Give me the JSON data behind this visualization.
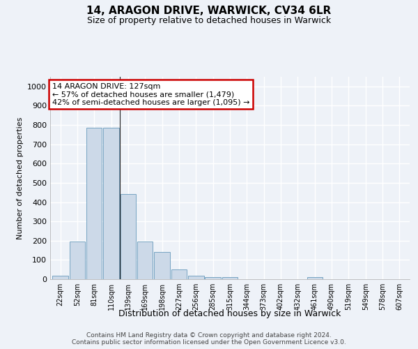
{
  "title": "14, ARAGON DRIVE, WARWICK, CV34 6LR",
  "subtitle": "Size of property relative to detached houses in Warwick",
  "xlabel": "Distribution of detached houses by size in Warwick",
  "ylabel": "Number of detached properties",
  "categories": [
    "22sqm",
    "52sqm",
    "81sqm",
    "110sqm",
    "139sqm",
    "169sqm",
    "198sqm",
    "227sqm",
    "256sqm",
    "285sqm",
    "315sqm",
    "344sqm",
    "373sqm",
    "402sqm",
    "432sqm",
    "461sqm",
    "490sqm",
    "519sqm",
    "549sqm",
    "578sqm",
    "607sqm"
  ],
  "values": [
    18,
    197,
    787,
    787,
    443,
    197,
    140,
    50,
    18,
    10,
    10,
    0,
    0,
    0,
    0,
    10,
    0,
    0,
    0,
    0,
    0
  ],
  "bar_color": "#ccd9e8",
  "bar_edge_color": "#6699bb",
  "annotation_line1": "14 ARAGON DRIVE: 127sqm",
  "annotation_line2": "← 57% of detached houses are smaller (1,479)",
  "annotation_line3": "42% of semi-detached houses are larger (1,095) →",
  "annotation_box_color": "#ffffff",
  "annotation_box_edge_color": "#cc0000",
  "vline_x": 3.5,
  "ylim": [
    0,
    1050
  ],
  "yticks": [
    0,
    100,
    200,
    300,
    400,
    500,
    600,
    700,
    800,
    900,
    1000
  ],
  "background_color": "#eef2f8",
  "grid_color": "#ffffff",
  "footer_line1": "Contains HM Land Registry data © Crown copyright and database right 2024.",
  "footer_line2": "Contains public sector information licensed under the Open Government Licence v3.0."
}
